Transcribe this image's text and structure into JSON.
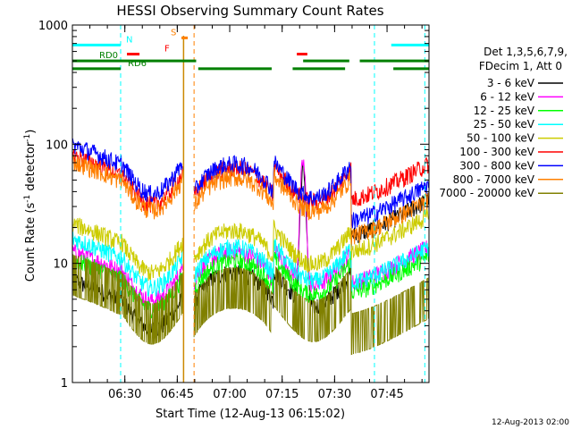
{
  "chart_data": {
    "type": "line",
    "title": "HESSI Observing Summary Count Rates",
    "xlabel": "Start Time (12-Aug-13 06:15:02)",
    "ylabel_main": "Count Rate (s",
    "ylabel_sup1": "-1",
    "ylabel_mid": " detector",
    "ylabel_sup2": "-1",
    "ylabel_end": ")",
    "y_scale": "log",
    "ylim": [
      1,
      1000
    ],
    "xlim_minutes": [
      6.25,
      7.95
    ],
    "x_ticks": [
      {
        "m": 6.5,
        "label": "06:30"
      },
      {
        "m": 6.75,
        "label": "06:45"
      },
      {
        "m": 7.0,
        "label": "07:00"
      },
      {
        "m": 7.25,
        "label": "07:15"
      },
      {
        "m": 7.5,
        "label": "07:30"
      },
      {
        "m": 7.75,
        "label": "07:45"
      }
    ],
    "y_ticks": [
      {
        "v": 1,
        "label": "1"
      },
      {
        "v": 10,
        "label": "10"
      },
      {
        "v": 100,
        "label": "100"
      },
      {
        "v": 1000,
        "label": "1000"
      }
    ],
    "legend_header": [
      "Det 1,3,5,6,7,9,",
      "FDecim 1, Att 0"
    ],
    "legend_placement": "right",
    "series": [
      {
        "name": "3 - 6 keV",
        "color": "#000000"
      },
      {
        "name": "6 - 12 keV",
        "color": "#ff00ff"
      },
      {
        "name": "12 - 25 keV",
        "color": "#00ff00"
      },
      {
        "name": "25 - 50 keV",
        "color": "#00ffff"
      },
      {
        "name": "50 - 100 keV",
        "color": "#cccc00"
      },
      {
        "name": "100 - 300 keV",
        "color": "#ff0000"
      },
      {
        "name": "300 - 800 keV",
        "color": "#0000ff"
      },
      {
        "name": "800 - 7000 keV",
        "color": "#ff8000"
      },
      {
        "name": "7000 - 20000 keV",
        "color": "#808000"
      }
    ],
    "flags": [
      {
        "label": "N",
        "color": "#00ffff",
        "value": 680,
        "segments": [
          [
            6.25,
            6.48
          ],
          [
            7.77,
            7.95
          ]
        ]
      },
      {
        "label": "F",
        "color": "#ff0000",
        "value": 570,
        "segments": [
          [
            6.51,
            6.57
          ],
          [
            7.32,
            7.37
          ]
        ]
      },
      {
        "label": "S",
        "color": "#ff8000",
        "value": 780,
        "segments": [
          [
            6.77,
            6.8
          ]
        ]
      },
      {
        "label": "RD0",
        "color": "#008000",
        "value": 500,
        "segments": [
          [
            6.25,
            6.84
          ],
          [
            7.35,
            7.57
          ],
          [
            7.62,
            7.95
          ]
        ]
      },
      {
        "label": "RD6",
        "color": "#008000",
        "value": 430,
        "segments": [
          [
            6.25,
            6.48
          ],
          [
            6.85,
            7.2
          ],
          [
            7.3,
            7.55
          ],
          [
            7.78,
            7.95
          ]
        ]
      }
    ],
    "night_markers_minutes": [
      6.48,
      7.69,
      7.93
    ],
    "saa_markers_minutes": [
      6.83
    ],
    "attenuator_marker_minutes": 6.78,
    "footer_date": "12-Aug-2013 02:00"
  }
}
